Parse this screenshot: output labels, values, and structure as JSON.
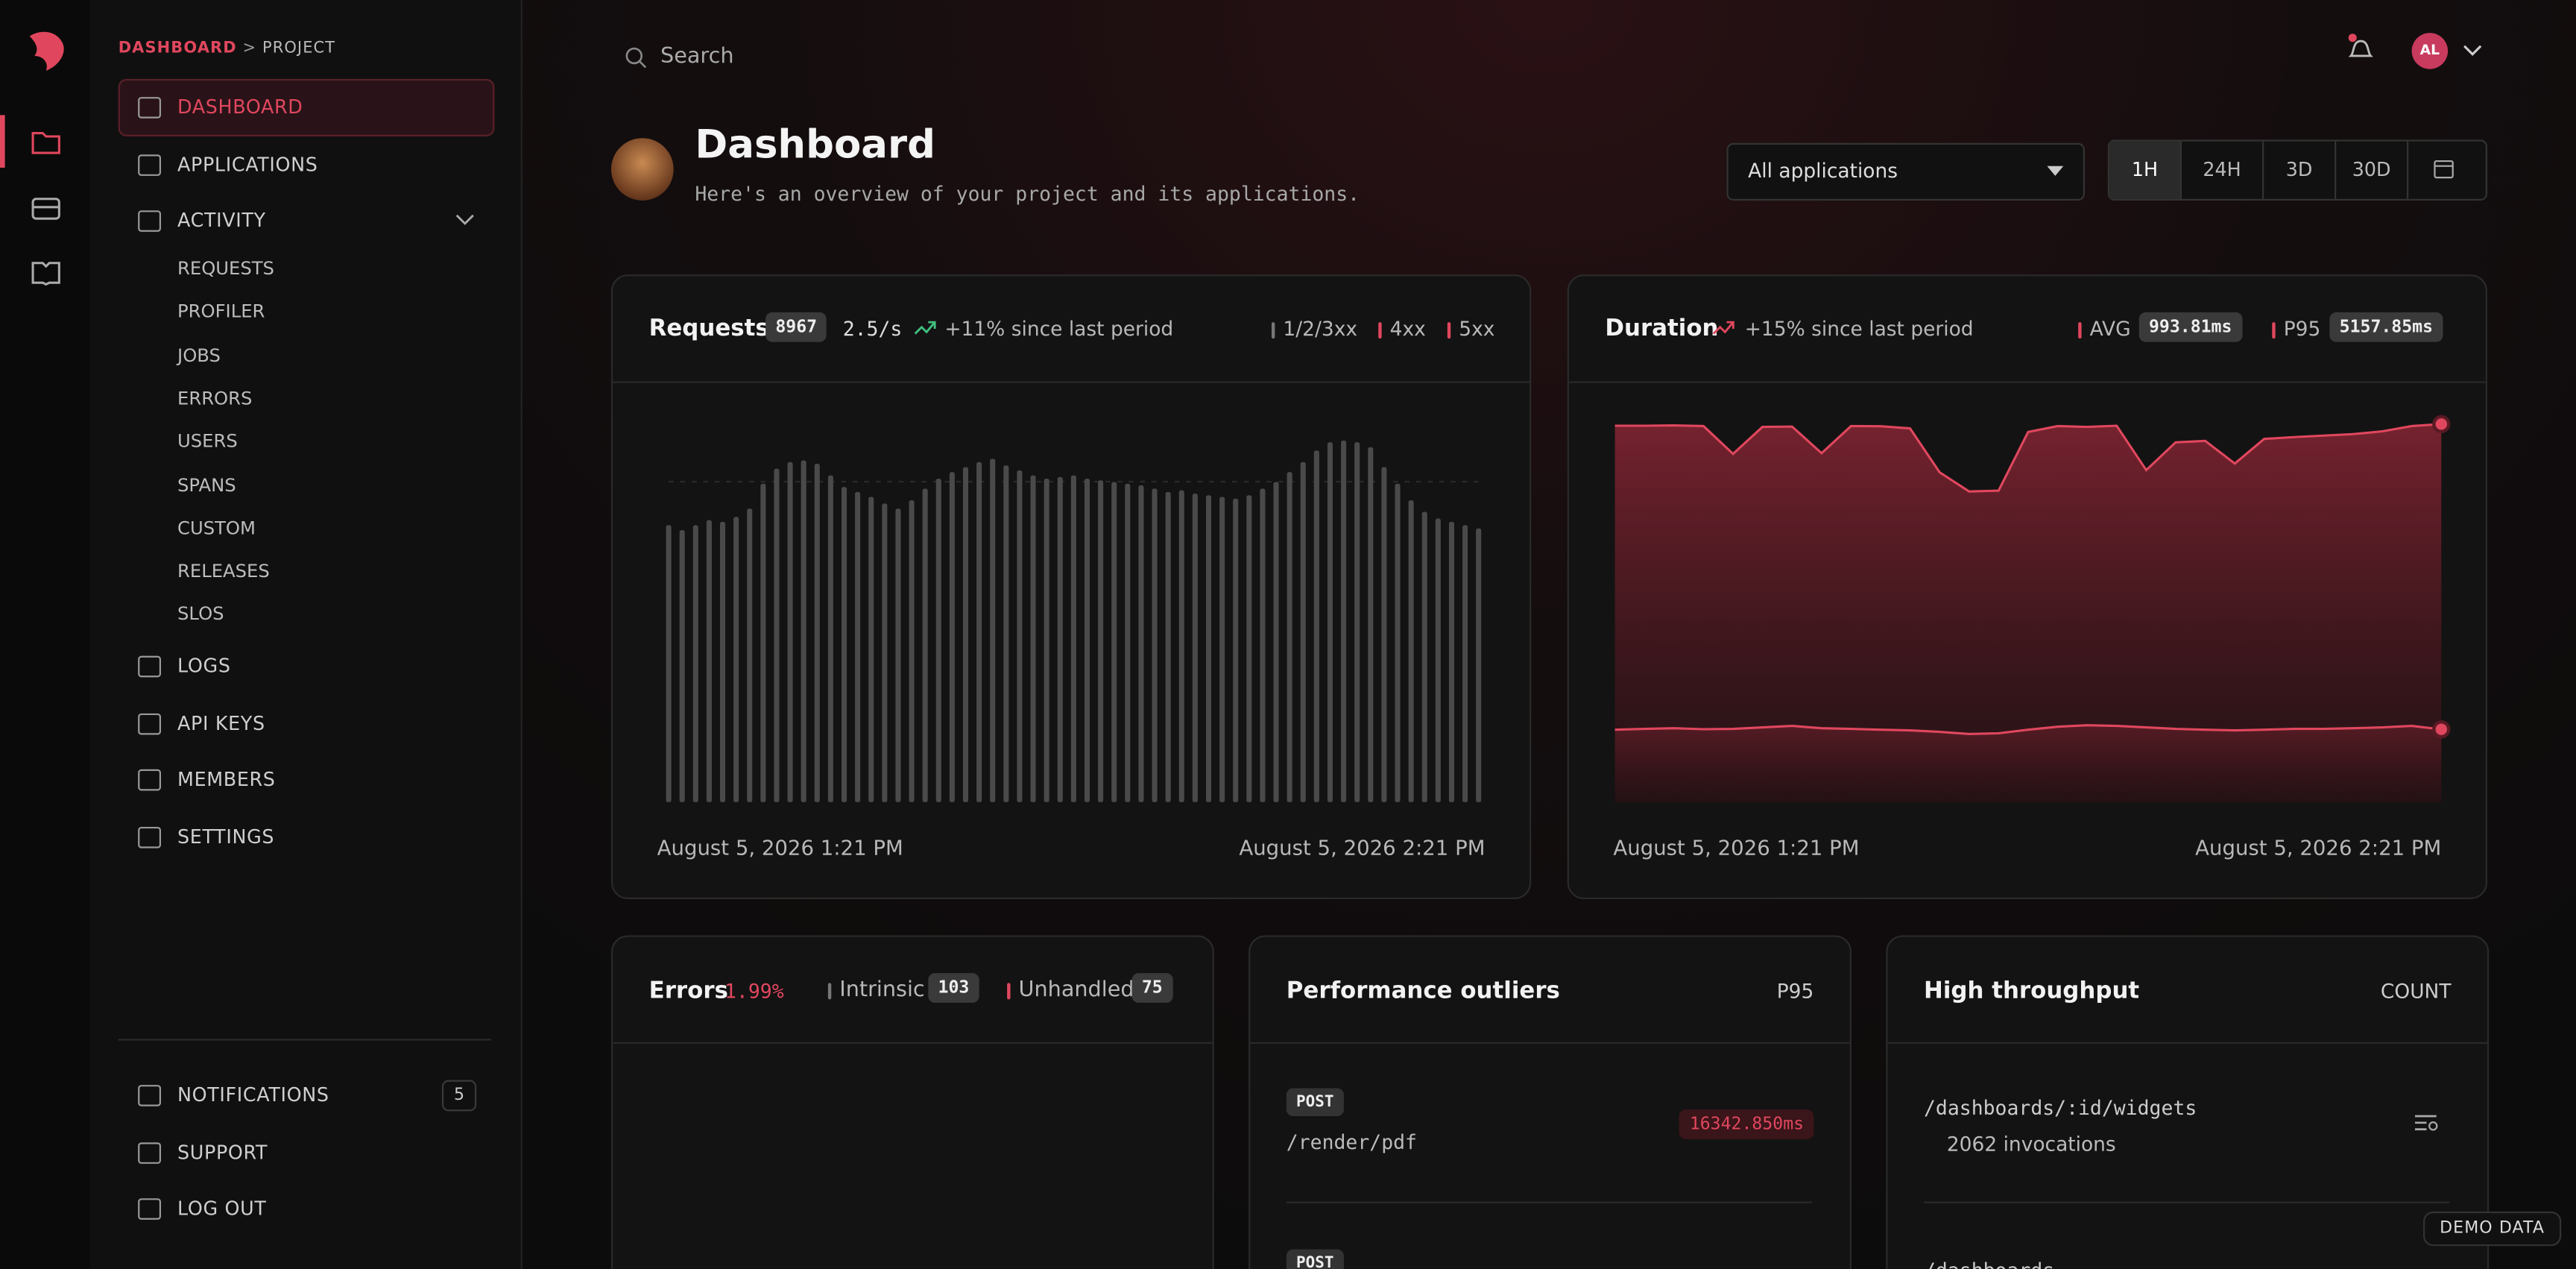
{
  "breadcrumb": {
    "parent": "DASHBOARD",
    "separator": ">",
    "current": "PROJECT"
  },
  "nav": {
    "items": [
      "DASHBOARD",
      "APPLICATIONS",
      "ACTIVITY"
    ],
    "activity_items": [
      "REQUESTS",
      "PROFILER",
      "JOBS",
      "ERRORS",
      "USERS",
      "SPANS",
      "CUSTOM",
      "RELEASES",
      "SLOS"
    ],
    "more_items": [
      "LOGS",
      "API KEYS",
      "MEMBERS",
      "SETTINGS"
    ],
    "footer_items": [
      "NOTIFICATIONS",
      "SUPPORT",
      "LOG OUT"
    ],
    "notifications_count": "5"
  },
  "header": {
    "search_placeholder": "Search",
    "avatar": "AL"
  },
  "page": {
    "title": "Dashboard",
    "subtitle": "Here's an overview of your project and its applications."
  },
  "filters": {
    "application": "All applications",
    "ranges": [
      "1H",
      "24H",
      "3D",
      "30D"
    ],
    "active_range": "1H"
  },
  "requests": {
    "title": "Requests",
    "count": "8967",
    "rate": "2.5/s",
    "trend": "+11% since last period",
    "legend": [
      "1/2/3xx",
      "4xx",
      "5xx"
    ],
    "start": "August 5, 2026 1:21 PM",
    "end": "August 5, 2026 2:21 PM",
    "chart_data": {
      "type": "bar",
      "color": "#4a4a4a",
      "values": [
        167,
        164,
        167,
        170,
        169,
        172,
        177,
        192,
        201,
        205,
        206,
        204,
        197,
        190,
        187,
        184,
        180,
        177,
        182,
        189,
        195,
        199,
        202,
        205,
        207,
        203,
        200,
        197,
        195,
        196,
        197,
        195,
        194,
        193,
        192,
        191,
        189,
        187,
        188,
        186,
        185,
        184,
        183,
        185,
        189,
        193,
        199,
        205,
        212,
        217,
        218,
        217,
        214,
        202,
        192,
        182,
        175,
        171,
        169,
        167,
        165
      ]
    }
  },
  "duration": {
    "title": "Duration",
    "trend": "+15% since last period",
    "avg_label": "AVG",
    "avg_value": "993.81ms",
    "p95_label": "P95",
    "p95_value": "5157.85ms",
    "start": "August 5, 2026 1:21 PM",
    "end": "August 5, 2026 2:21 PM",
    "chart_data": {
      "type": "area",
      "series": [
        {
          "name": "P95",
          "color": "#e0475e",
          "values": [
            5135,
            5135,
            5140,
            5130,
            4753,
            5120,
            5125,
            4760,
            5130,
            5128,
            5100,
            4500,
            4238,
            4250,
            5050,
            5130,
            5120,
            5135,
            4529,
            4910,
            4930,
            4620,
            4955,
            4980,
            5000,
            5020,
            5060,
            5130,
            5157.85
          ]
        },
        {
          "name": "AVG",
          "color": "#e0475e",
          "values": [
            990,
            1000,
            1010,
            995,
            1000,
            1020,
            1040,
            1010,
            1000,
            990,
            980,
            960,
            930,
            940,
            990,
            1030,
            1050,
            1040,
            1020,
            1000,
            990,
            980,
            990,
            1000,
            1000,
            1010,
            1020,
            1040,
            993.81
          ]
        }
      ]
    }
  },
  "errors": {
    "title": "Errors",
    "rate": "1.99%",
    "intrinsic_label": "Intrinsic",
    "intrinsic_count": "103",
    "unhandled_label": "Unhandled",
    "unhandled_count": "75"
  },
  "outliers": {
    "title": "Performance outliers",
    "metric": "P95",
    "items": [
      {
        "method": "POST",
        "path": "/render/pdf",
        "duration": "16342.850ms"
      },
      {
        "method": "POST"
      }
    ]
  },
  "throughput": {
    "title": "High throughput",
    "metric": "COUNT",
    "items": [
      {
        "path": "/dashboards/:id/widgets",
        "invocations": "2062 invocations"
      },
      {
        "path": "/dashboards"
      }
    ]
  },
  "badge": "DEMO DATA"
}
